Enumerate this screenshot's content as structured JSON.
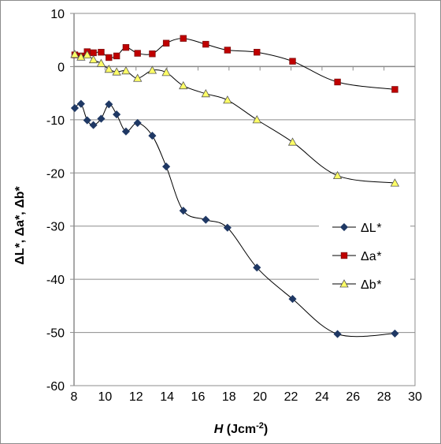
{
  "chart_data": {
    "type": "line",
    "title": "",
    "xlabel": {
      "main": "H",
      "unit": " (Jcm",
      "sup": "-2",
      "close": ")"
    },
    "ylabel": "ΔL*,  Δa*,  Δb*",
    "xlim": [
      8,
      30
    ],
    "ylim": [
      -60,
      10
    ],
    "xticks": [
      8,
      10,
      12,
      14,
      16,
      18,
      20,
      22,
      24,
      26,
      28,
      30
    ],
    "yticks": [
      10,
      0,
      -10,
      -20,
      -30,
      -40,
      -50,
      -60
    ],
    "grid": "horizontal",
    "legend_position": "right-center",
    "series": [
      {
        "name": "ΔL*",
        "legend_main": "ΔL",
        "legend_star": "*",
        "marker": "diamond",
        "color": "#1f3864",
        "x": [
          8.05,
          8.45,
          8.85,
          9.25,
          9.75,
          10.25,
          10.75,
          11.35,
          12.1,
          13.05,
          13.95,
          15.05,
          16.5,
          17.9,
          19.8,
          22.1,
          25.0,
          28.7
        ],
        "y": [
          -7.8,
          -7.0,
          -10.1,
          -11.0,
          -9.8,
          -7.1,
          -9.0,
          -12.2,
          -10.6,
          -13.0,
          -18.8,
          -27.1,
          -28.8,
          -30.3,
          -37.8,
          -43.7,
          -50.3,
          -50.2
        ]
      },
      {
        "name": "Δa*",
        "legend_main": "Δa",
        "legend_star": "*",
        "marker": "square",
        "color": "#c00000",
        "x": [
          8.05,
          8.45,
          8.85,
          9.25,
          9.75,
          10.25,
          10.75,
          11.35,
          12.1,
          13.05,
          13.95,
          15.05,
          16.5,
          17.9,
          19.8,
          22.1,
          25.0,
          28.7
        ],
        "y": [
          2.2,
          2.0,
          2.8,
          2.6,
          2.7,
          1.7,
          2.0,
          3.6,
          2.5,
          2.4,
          4.4,
          5.3,
          4.2,
          3.1,
          2.7,
          1.0,
          -2.9,
          -4.3
        ]
      },
      {
        "name": "Δb*",
        "legend_main": "Δb",
        "legend_star": "*",
        "marker": "triangle",
        "color": "#ffff66",
        "x": [
          8.05,
          8.45,
          8.85,
          9.25,
          9.75,
          10.25,
          10.75,
          11.35,
          12.1,
          13.05,
          13.95,
          15.05,
          16.5,
          17.9,
          19.8,
          22.1,
          25.0,
          28.7
        ],
        "y": [
          2.3,
          1.8,
          2.2,
          1.3,
          0.6,
          -0.5,
          -1.0,
          -0.8,
          -2.2,
          -0.7,
          -1.1,
          -3.6,
          -5.1,
          -6.3,
          -10.0,
          -14.2,
          -20.5,
          -21.9
        ]
      }
    ]
  }
}
